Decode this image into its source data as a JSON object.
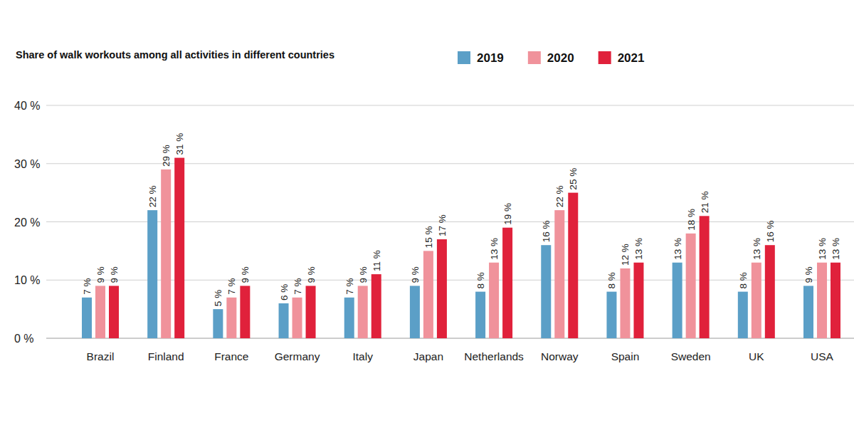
{
  "chart_data": {
    "type": "bar",
    "title": "Share of walk workouts among all activities in different countries",
    "categories": [
      "Brazil",
      "Finland",
      "France",
      "Germany",
      "Italy",
      "Japan",
      "Netherlands",
      "Norway",
      "Spain",
      "Sweden",
      "UK",
      "USA"
    ],
    "series": [
      {
        "name": "2019",
        "color": "#5b9fc7",
        "values": [
          7,
          22,
          5,
          6,
          7,
          9,
          8,
          16,
          8,
          13,
          8,
          9
        ],
        "value_labels": [
          "7 %",
          "22 %",
          "5 %",
          "6 %",
          "7 %",
          "9 %",
          "8 %",
          "16 %",
          "8 %",
          "13 %",
          "8 %",
          "9 %"
        ]
      },
      {
        "name": "2020",
        "color": "#f0929b",
        "values": [
          9,
          29,
          7,
          7,
          9,
          15,
          13,
          22,
          12,
          18,
          13,
          13
        ],
        "value_labels": [
          "9 %",
          "29 %",
          "7 %",
          "7 %",
          "9 %",
          "15 %",
          "13 %",
          "22 %",
          "12 %",
          "18 %",
          "13 %",
          "13 %"
        ]
      },
      {
        "name": "2021",
        "color": "#e0213b",
        "values": [
          9,
          31,
          9,
          9,
          11,
          17,
          19,
          25,
          13,
          21,
          16,
          13
        ],
        "value_labels": [
          "9 %",
          "31 %",
          "9 %",
          "9 %",
          "11 %",
          "17 %",
          "19 %",
          "25 %",
          "13 %",
          "21 %",
          "16 %",
          "13 %"
        ]
      }
    ],
    "ylim": [
      0,
      40
    ],
    "yticks": [
      {
        "value": 0,
        "label": "0 %"
      },
      {
        "value": 10,
        "label": "10 %"
      },
      {
        "value": 20,
        "label": "20 %"
      },
      {
        "value": 30,
        "label": "30 %"
      },
      {
        "value": 40,
        "label": "40 %"
      }
    ],
    "grid": true,
    "legend": "top",
    "data_labels": true
  }
}
